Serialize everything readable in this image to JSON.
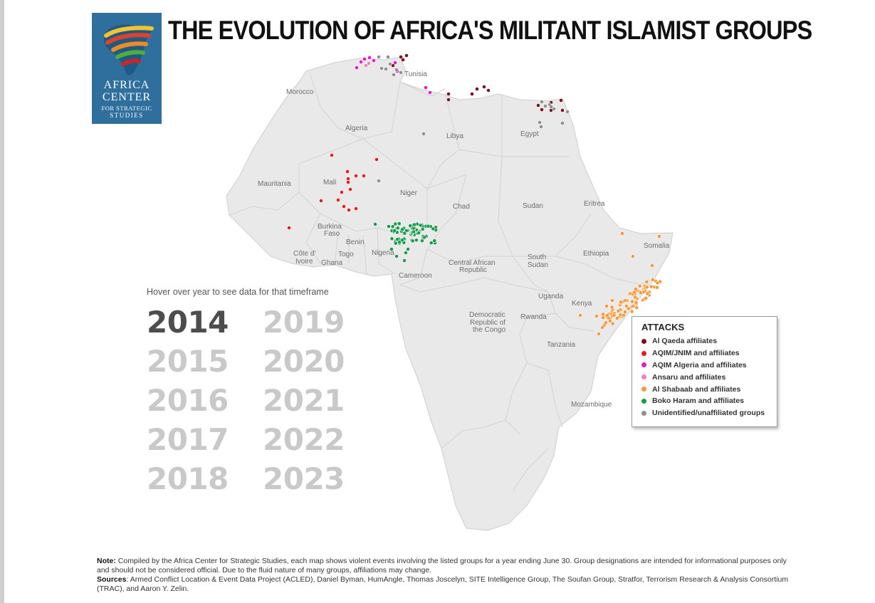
{
  "title": "THE EVOLUTION OF AFRICA'S MILITANT ISLAMIST GROUPS",
  "logo": {
    "line1": "AFRICA",
    "line2": "CENTER",
    "line3": "FOR STRATEGIC",
    "line4": "STUDIES",
    "background": "#2e6f9e"
  },
  "map": {
    "land_color": "#e9e9e9",
    "border_color": "#d4d4d4",
    "country_labels": [
      "Morocco",
      "Tunisia",
      "Algeria",
      "Libya",
      "Egypt",
      "Mauritania",
      "Mali",
      "Niger",
      "Chad",
      "Sudan",
      "Eritrea",
      "Burkina",
      "Faso",
      "Benin",
      "Côte d'",
      "Ivoire",
      "Togo",
      "Ghana",
      "Nigeria",
      "Cameroon",
      "Central African",
      "Republic",
      "South",
      "Sudan",
      "Ethiopia",
      "Somalia",
      "Uganda",
      "Kenya",
      "Democratic",
      "Republic of",
      "the Congo",
      "Rwanda",
      "Tanzania",
      "Mozambique"
    ]
  },
  "hover_hint": "Hover over year to see data for that timeframe",
  "years": [
    "2014",
    "2015",
    "2016",
    "2017",
    "2018",
    "2019",
    "2020",
    "2021",
    "2022",
    "2023"
  ],
  "selected_year": "2014",
  "legend": {
    "title": "ATTACKS",
    "items": [
      {
        "label": "Al Qaeda affiliates",
        "color": "#7a1020"
      },
      {
        "label": "AQIM/JNIM and affiliates",
        "color": "#e41c1c"
      },
      {
        "label": "AQIM Algeria and affiliates",
        "color": "#e619c8"
      },
      {
        "label": "Ansaru and affiliates",
        "color": "#ef7fbf"
      },
      {
        "label": "Al Shabaab and affiliates",
        "color": "#f5993d"
      },
      {
        "label": "Boko Haram and affiliates",
        "color": "#1a9a4c"
      },
      {
        "label": "Unidentified/unaffiliated groups",
        "color": "#8f8f8f"
      }
    ]
  },
  "footnote": {
    "note_label": "Note:",
    "note_text": "Compiled by the Africa Center for Strategic Studies, each map shows violent events involving the listed groups for a year ending June 30. Group designations are intended for informational purposes only and should not be considered official. Due to the fluid nature of many groups, affiliations may change.",
    "sources_label": "Sources",
    "sources_text": ": Armed Conflict Location & Event Data Project (ACLED), Daniel Byman, HumAngle, Thomas Joscelyn, SITE Intelligence Group, The Soufan Group, Stratfor, Terrorism Research & Analysis Consortium (TRAC), and Aaron Y. Zelin."
  }
}
